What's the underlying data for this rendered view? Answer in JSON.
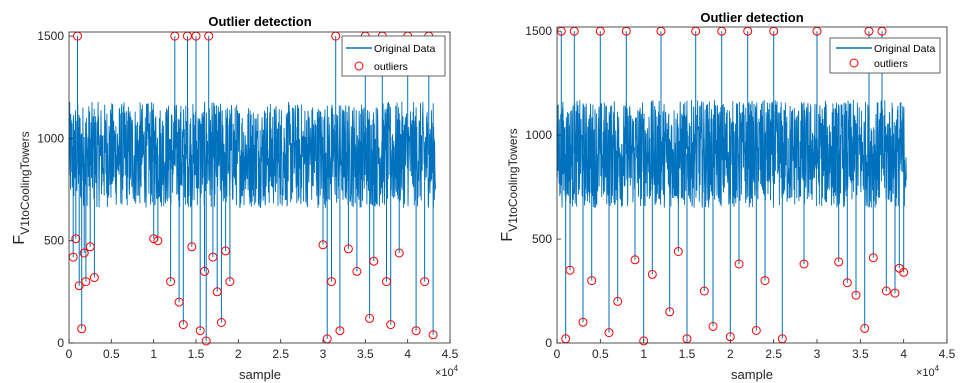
{
  "colors": {
    "line": "#0072BD",
    "outlier": "#FF0000",
    "axis": "#262626",
    "bg": "#ffffff"
  },
  "chart_data": [
    {
      "type": "line",
      "title": "Outlier detection",
      "xlabel": "sample",
      "ylabel_main": "F",
      "ylabel_sub": "V1toCoolingTowers",
      "x_multiplier": "×10",
      "x_exponent": "4",
      "xlim": [
        0,
        4.5
      ],
      "ylim": [
        0,
        1520
      ],
      "xticks": [
        "0",
        "0.5",
        "1",
        "1.5",
        "2",
        "2.5",
        "3",
        "3.5",
        "4",
        "4.5"
      ],
      "yticks": [
        "0",
        "500",
        "1000",
        "1500"
      ],
      "legend": [
        "Original Data",
        "outliers"
      ],
      "legend_position": "top-right",
      "series": [
        {
          "name": "Original Data",
          "x_range": [
            0,
            4.33
          ],
          "band": [
            660,
            1180
          ]
        },
        {
          "name": "outliers",
          "points": [
            [
              0.05,
              420
            ],
            [
              0.08,
              510
            ],
            [
              0.1,
              1500
            ],
            [
              0.12,
              280
            ],
            [
              0.15,
              70
            ],
            [
              0.18,
              440
            ],
            [
              0.2,
              300
            ],
            [
              0.25,
              470
            ],
            [
              0.3,
              320
            ],
            [
              1.0,
              510
            ],
            [
              1.05,
              500
            ],
            [
              1.2,
              300
            ],
            [
              1.25,
              1500
            ],
            [
              1.3,
              200
            ],
            [
              1.35,
              90
            ],
            [
              1.4,
              1500
            ],
            [
              1.45,
              470
            ],
            [
              1.5,
              1500
            ],
            [
              1.55,
              60
            ],
            [
              1.6,
              350
            ],
            [
              1.62,
              10
            ],
            [
              1.65,
              1500
            ],
            [
              1.7,
              420
            ],
            [
              1.75,
              250
            ],
            [
              1.8,
              100
            ],
            [
              1.85,
              450
            ],
            [
              1.9,
              300
            ],
            [
              3.0,
              480
            ],
            [
              3.05,
              20
            ],
            [
              3.1,
              300
            ],
            [
              3.15,
              1500
            ],
            [
              3.2,
              60
            ],
            [
              3.3,
              460
            ],
            [
              3.4,
              350
            ],
            [
              3.5,
              1500
            ],
            [
              3.55,
              120
            ],
            [
              3.6,
              400
            ],
            [
              3.7,
              1500
            ],
            [
              3.75,
              300
            ],
            [
              3.8,
              90
            ],
            [
              3.9,
              440
            ],
            [
              4.0,
              1500
            ],
            [
              4.1,
              60
            ],
            [
              4.2,
              300
            ],
            [
              4.25,
              1500
            ],
            [
              4.3,
              40
            ]
          ]
        }
      ]
    },
    {
      "type": "line",
      "title": "Outlier detection",
      "xlabel": "sample",
      "ylabel_main": "F",
      "ylabel_sub": "V1toCoolingTowers",
      "x_multiplier": "×10",
      "x_exponent": "4",
      "xlim": [
        0,
        4.5
      ],
      "ylim": [
        0,
        1520
      ],
      "xticks": [
        "0",
        "0.5",
        "1",
        "1.5",
        "2",
        "2.5",
        "3",
        "3.5",
        "4",
        "4.5"
      ],
      "yticks": [
        "0",
        "500",
        "1000",
        "1500"
      ],
      "legend": [
        "Original Data",
        "outliers"
      ],
      "legend_position": "top-right",
      "series": [
        {
          "name": "Original Data",
          "x_range": [
            0,
            4.03
          ],
          "band": [
            650,
            1170
          ]
        },
        {
          "name": "outliers",
          "points": [
            [
              0.05,
              1500
            ],
            [
              0.1,
              20
            ],
            [
              0.15,
              350
            ],
            [
              0.2,
              1500
            ],
            [
              0.3,
              100
            ],
            [
              0.4,
              300
            ],
            [
              0.5,
              1500
            ],
            [
              0.6,
              50
            ],
            [
              0.7,
              200
            ],
            [
              0.8,
              1500
            ],
            [
              0.9,
              400
            ],
            [
              1.0,
              10
            ],
            [
              1.1,
              330
            ],
            [
              1.2,
              1500
            ],
            [
              1.3,
              150
            ],
            [
              1.4,
              440
            ],
            [
              1.5,
              20
            ],
            [
              1.6,
              1500
            ],
            [
              1.7,
              250
            ],
            [
              1.8,
              80
            ],
            [
              1.9,
              1500
            ],
            [
              2.0,
              30
            ],
            [
              2.1,
              380
            ],
            [
              2.2,
              1500
            ],
            [
              2.3,
              60
            ],
            [
              2.4,
              300
            ],
            [
              2.5,
              1500
            ],
            [
              2.6,
              20
            ],
            [
              2.85,
              380
            ],
            [
              3.0,
              1500
            ],
            [
              3.25,
              390
            ],
            [
              3.35,
              290
            ],
            [
              3.45,
              230
            ],
            [
              3.55,
              70
            ],
            [
              3.6,
              1500
            ],
            [
              3.65,
              410
            ],
            [
              3.75,
              1500
            ],
            [
              3.8,
              250
            ],
            [
              3.9,
              240
            ],
            [
              3.95,
              360
            ],
            [
              4.0,
              340
            ]
          ]
        }
      ]
    }
  ]
}
